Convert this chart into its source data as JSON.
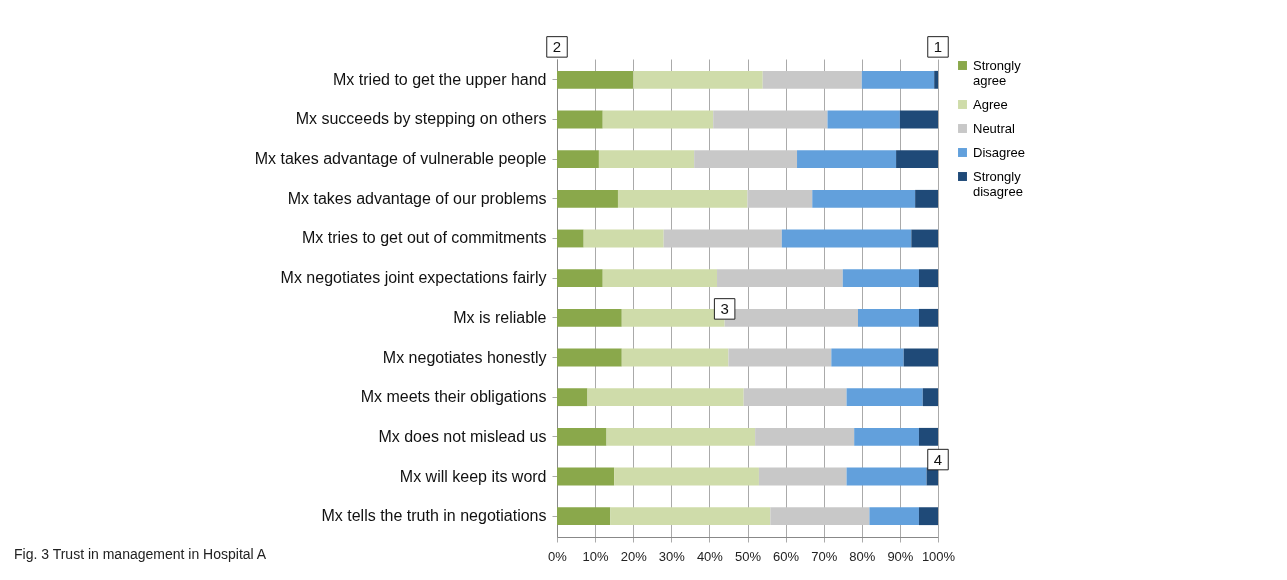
{
  "chart_data": {
    "type": "bar",
    "orientation": "horizontal",
    "stacked": true,
    "categories": [
      "Mx tried to get the upper hand",
      "Mx succeeds by stepping on others",
      "Mx takes advantage of vulnerable people",
      "Mx takes advantage of our problems",
      "Mx tries to get out of commitments",
      "Mx negotiates joint expectations fairly",
      "Mx is reliable",
      "Mx negotiates honestly",
      "Mx meets their obligations",
      "Mx does not mislead us",
      "Mx will keep its word",
      "Mx tells the truth in negotiations"
    ],
    "series": [
      {
        "name": "Strongly agree",
        "color": "#8aa84b",
        "values": [
          20,
          12,
          11,
          16,
          7,
          12,
          17,
          17,
          8,
          13,
          15,
          14
        ]
      },
      {
        "name": "Agree",
        "color": "#cfdcaa",
        "values": [
          34,
          29,
          25,
          34,
          21,
          30,
          27,
          28,
          41,
          39,
          38,
          42
        ]
      },
      {
        "name": "Neutral",
        "color": "#c8c8c8",
        "values": [
          26,
          30,
          27,
          17,
          31,
          33,
          35,
          27,
          27,
          26,
          23,
          26
        ]
      },
      {
        "name": "Disagree",
        "color": "#62a0dc",
        "values": [
          19,
          19,
          26,
          27,
          34,
          20,
          16,
          19,
          20,
          17,
          21,
          13
        ]
      },
      {
        "name": "Strongly disagree",
        "color": "#1f4a78",
        "values": [
          1,
          10,
          11,
          6,
          7,
          5,
          5,
          9,
          4,
          5,
          3,
          5
        ]
      }
    ],
    "xlim": [
      0,
      100
    ],
    "xticks": [
      {
        "value": 0,
        "label": "0%"
      },
      {
        "value": 10,
        "label": "10%"
      },
      {
        "value": 20,
        "label": "20%"
      },
      {
        "value": 30,
        "label": "30%"
      },
      {
        "value": 40,
        "label": "40%"
      },
      {
        "value": 50,
        "label": "50%"
      },
      {
        "value": 60,
        "label": "60%"
      },
      {
        "value": 70,
        "label": "70%"
      },
      {
        "value": 80,
        "label": "80%"
      },
      {
        "value": 90,
        "label": "90%"
      },
      {
        "value": 100,
        "label": "100%"
      }
    ],
    "grid": "x",
    "legend": "right",
    "annotations": [
      {
        "text": "1",
        "x": 100,
        "y": "Mx tried to get the upper hand"
      },
      {
        "text": "2",
        "x": 0,
        "y": "Mx tried to get the upper hand"
      },
      {
        "text": "3",
        "x": 44,
        "y": "Mx is reliable"
      },
      {
        "text": "4",
        "x": 100,
        "y": "Mx will keep its word"
      },
      "Fig. 3 Trust in management in Hospital A"
    ]
  }
}
